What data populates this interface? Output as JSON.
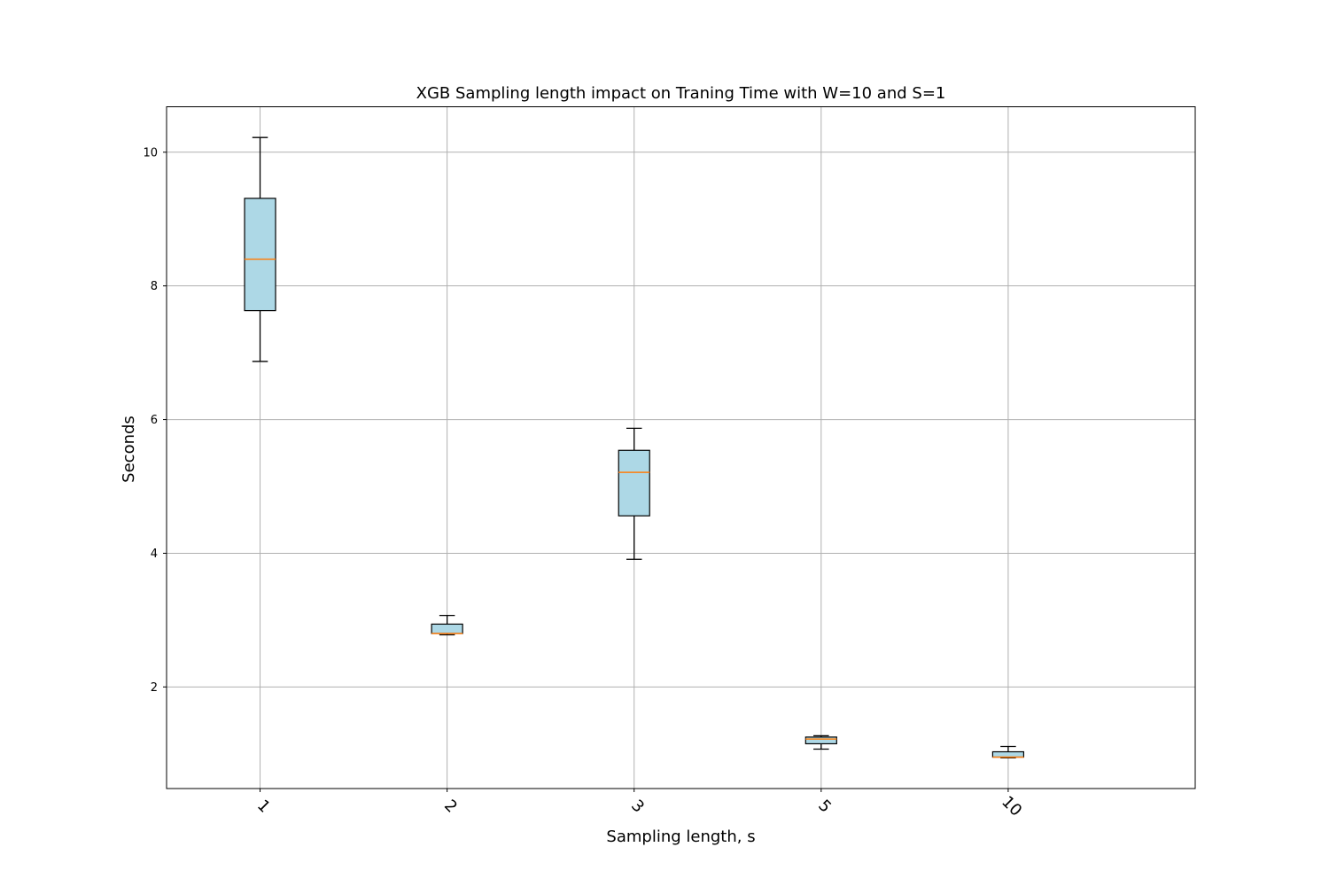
{
  "chart_data": {
    "type": "box",
    "title": "XGB Sampling length impact on Traning Time with W=10 and S=1",
    "xlabel": "Sampling length, s",
    "ylabel": "Seconds",
    "categories": [
      "1",
      "2",
      "3",
      "5",
      "10"
    ],
    "boxes": [
      {
        "whisker_low": 6.87,
        "q1": 7.63,
        "median": 8.4,
        "q3": 9.31,
        "whisker_high": 10.22
      },
      {
        "whisker_low": 2.78,
        "q1": 2.8,
        "median": 2.8,
        "q3": 2.94,
        "whisker_high": 3.07
      },
      {
        "whisker_low": 3.91,
        "q1": 4.56,
        "median": 5.21,
        "q3": 5.54,
        "whisker_high": 5.87
      },
      {
        "whisker_low": 1.07,
        "q1": 1.15,
        "median": 1.22,
        "q3": 1.25,
        "whisker_high": 1.27
      },
      {
        "whisker_low": 0.94,
        "q1": 0.95,
        "median": 0.95,
        "q3": 1.03,
        "whisker_high": 1.11
      }
    ],
    "yticks": [
      "2",
      "4",
      "6",
      "8",
      "10"
    ],
    "ylim": [
      0.48,
      10.68
    ],
    "grid": true,
    "colors": {
      "box_fill": "#add8e6",
      "median": "#ff7f0e",
      "grid": "#b0b0b0",
      "frame": "#000000"
    }
  }
}
